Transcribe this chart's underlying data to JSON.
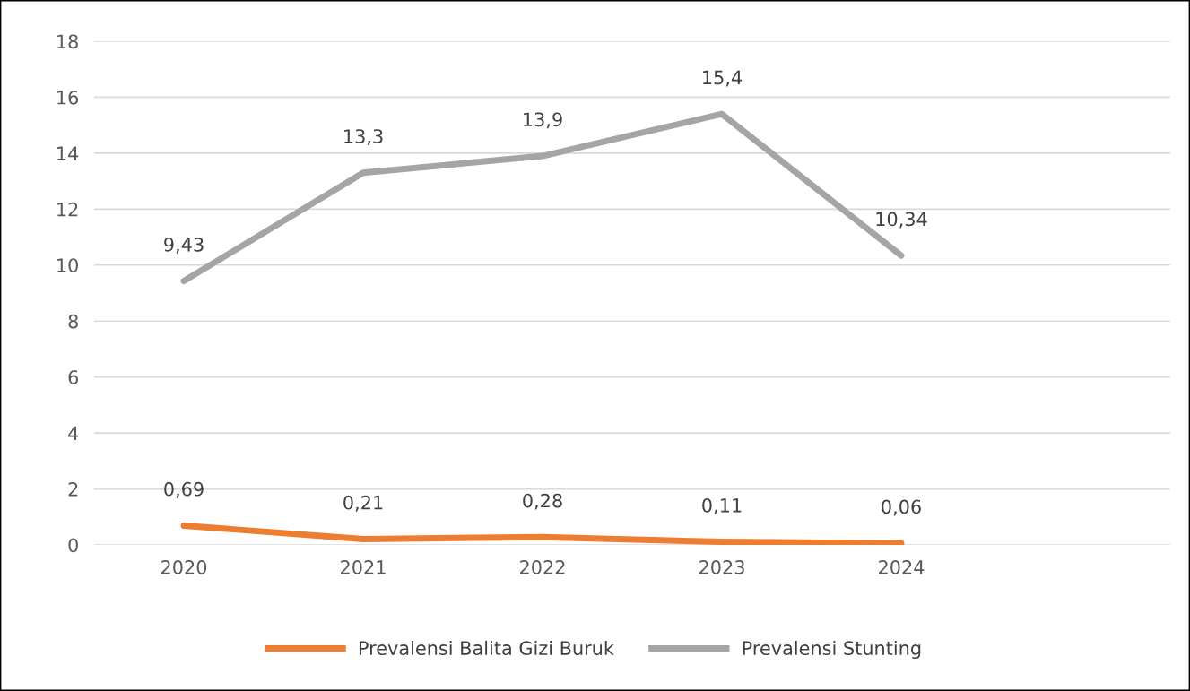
{
  "chart_data": {
    "type": "line",
    "categories": [
      "2020",
      "2021",
      "2022",
      "2023",
      "2024",
      null
    ],
    "series": [
      {
        "name": "Prevalensi Balita Gizi Buruk",
        "color": "#ed7d31",
        "values": [
          0.69,
          0.21,
          0.28,
          0.11,
          0.06,
          null
        ],
        "value_labels": [
          "0,69",
          "0,21",
          "0,28",
          "0,11",
          "0,06",
          null
        ]
      },
      {
        "name": "Prevalensi Stunting",
        "color": "#a5a5a5",
        "values": [
          9.43,
          13.3,
          13.9,
          15.4,
          10.34,
          null
        ],
        "value_labels": [
          "9,43",
          "13,3",
          "13,9",
          "15,4",
          "10,34",
          null
        ]
      }
    ],
    "ylim": [
      0,
      18
    ],
    "yticks": [
      0,
      2,
      4,
      6,
      8,
      10,
      12,
      14,
      16,
      18
    ],
    "grid": "y",
    "legend": "bottom",
    "marker": "none",
    "line_style": "solid"
  }
}
